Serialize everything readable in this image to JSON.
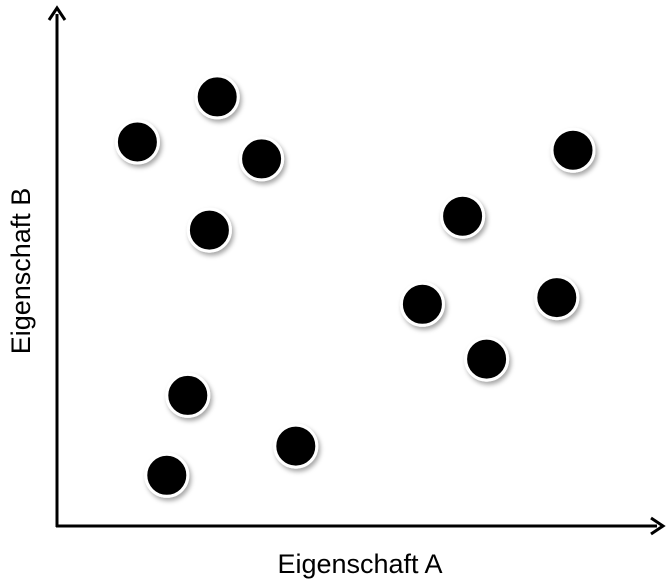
{
  "chart_data": {
    "type": "scatter",
    "xlabel": "Eigenschaft A",
    "ylabel": "Eigenschaft B",
    "xlim": [
      0,
      100
    ],
    "ylim": [
      0,
      100
    ],
    "grid": false,
    "legend": "none",
    "tick_labels": false,
    "point_color": "#000000",
    "series": [
      {
        "points": [
          {
            "x": 13.4,
            "y": 75.0
          },
          {
            "x": 26.7,
            "y": 83.8
          },
          {
            "x": 34.1,
            "y": 71.7
          },
          {
            "x": 25.4,
            "y": 57.8
          },
          {
            "x": 21.8,
            "y": 25.5
          },
          {
            "x": 18.3,
            "y": 9.9
          },
          {
            "x": 39.8,
            "y": 15.6
          },
          {
            "x": 60.9,
            "y": 43.3
          },
          {
            "x": 67.6,
            "y": 60.5
          },
          {
            "x": 71.6,
            "y": 32.6
          },
          {
            "x": 83.3,
            "y": 44.6
          },
          {
            "x": 86.0,
            "y": 73.4
          }
        ]
      }
    ]
  }
}
